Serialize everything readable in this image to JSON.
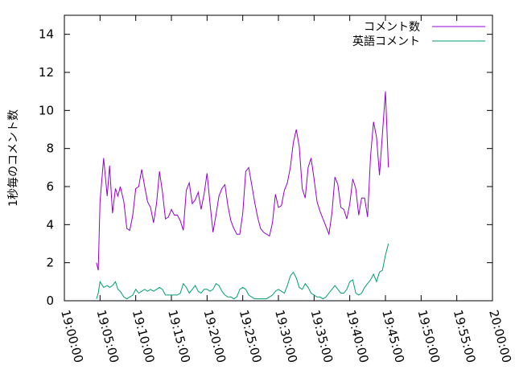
{
  "chart_data": {
    "type": "line",
    "ylabel": "1秒毎のコメント数",
    "xlabel": "",
    "ylim": [
      0,
      15
    ],
    "xlim": [
      "19:00:00",
      "20:00:00"
    ],
    "x_ticks": [
      "19:00:00",
      "19:05:00",
      "19:10:00",
      "19:15:00",
      "19:20:00",
      "19:25:00",
      "19:30:00",
      "19:35:00",
      "19:40:00",
      "19:45:00",
      "19:50:00",
      "19:55:00",
      "20:00:00"
    ],
    "y_ticks": [
      0,
      2,
      4,
      6,
      8,
      10,
      12,
      14
    ],
    "grid": false,
    "legend_position": "top-right",
    "series": [
      {
        "name": "コメント数",
        "color": "#9400d3",
        "points": [
          [
            "19:04:30",
            2.0
          ],
          [
            "19:04:45",
            1.6
          ],
          [
            "19:05:00",
            5.2
          ],
          [
            "19:05:30",
            7.5
          ],
          [
            "19:06:00",
            5.5
          ],
          [
            "19:06:20",
            7.1
          ],
          [
            "19:06:45",
            4.6
          ],
          [
            "19:07:10",
            5.9
          ],
          [
            "19:07:30",
            5.5
          ],
          [
            "19:07:50",
            6.0
          ],
          [
            "19:08:20",
            5.2
          ],
          [
            "19:08:45",
            3.8
          ],
          [
            "19:09:10",
            3.7
          ],
          [
            "19:09:35",
            4.5
          ],
          [
            "19:10:00",
            5.9
          ],
          [
            "19:10:25",
            6.0
          ],
          [
            "19:10:50",
            6.9
          ],
          [
            "19:11:15",
            6.0
          ],
          [
            "19:11:40",
            5.2
          ],
          [
            "19:12:05",
            4.9
          ],
          [
            "19:12:30",
            4.1
          ],
          [
            "19:12:55",
            5.1
          ],
          [
            "19:13:20",
            6.8
          ],
          [
            "19:13:45",
            5.7
          ],
          [
            "19:14:10",
            4.3
          ],
          [
            "19:14:35",
            4.4
          ],
          [
            "19:15:00",
            4.8
          ],
          [
            "19:15:25",
            4.5
          ],
          [
            "19:15:50",
            4.5
          ],
          [
            "19:16:15",
            4.2
          ],
          [
            "19:16:40",
            3.7
          ],
          [
            "19:17:05",
            5.8
          ],
          [
            "19:17:30",
            6.2
          ],
          [
            "19:17:55",
            5.1
          ],
          [
            "19:18:20",
            5.3
          ],
          [
            "19:18:45",
            5.7
          ],
          [
            "19:19:10",
            4.8
          ],
          [
            "19:19:35",
            5.6
          ],
          [
            "19:20:00",
            6.7
          ],
          [
            "19:20:25",
            5.1
          ],
          [
            "19:20:50",
            3.6
          ],
          [
            "19:21:15",
            4.5
          ],
          [
            "19:21:40",
            5.5
          ],
          [
            "19:22:05",
            5.9
          ],
          [
            "19:22:30",
            6.1
          ],
          [
            "19:22:55",
            5.0
          ],
          [
            "19:23:20",
            4.2
          ],
          [
            "19:23:45",
            3.8
          ],
          [
            "19:24:10",
            3.5
          ],
          [
            "19:24:35",
            3.5
          ],
          [
            "19:25:00",
            4.6
          ],
          [
            "19:25:25",
            6.8
          ],
          [
            "19:25:50",
            7.0
          ],
          [
            "19:26:15",
            6.1
          ],
          [
            "19:26:40",
            5.2
          ],
          [
            "19:27:05",
            4.4
          ],
          [
            "19:27:30",
            3.8
          ],
          [
            "19:27:55",
            3.6
          ],
          [
            "19:28:20",
            3.5
          ],
          [
            "19:28:45",
            3.4
          ],
          [
            "19:29:10",
            4.1
          ],
          [
            "19:29:35",
            5.6
          ],
          [
            "19:30:00",
            4.9
          ],
          [
            "19:30:25",
            5.0
          ],
          [
            "19:30:50",
            5.8
          ],
          [
            "19:31:15",
            6.2
          ],
          [
            "19:31:40",
            7.0
          ],
          [
            "19:32:05",
            8.3
          ],
          [
            "19:32:30",
            9.0
          ],
          [
            "19:32:55",
            8.1
          ],
          [
            "19:33:20",
            5.9
          ],
          [
            "19:33:45",
            5.4
          ],
          [
            "19:34:10",
            7.0
          ],
          [
            "19:34:35",
            7.5
          ],
          [
            "19:35:00",
            6.4
          ],
          [
            "19:35:25",
            5.2
          ],
          [
            "19:35:50",
            4.7
          ],
          [
            "19:36:15",
            4.3
          ],
          [
            "19:36:40",
            3.9
          ],
          [
            "19:37:05",
            3.5
          ],
          [
            "19:37:30",
            4.6
          ],
          [
            "19:37:55",
            6.5
          ],
          [
            "19:38:20",
            6.1
          ],
          [
            "19:38:45",
            4.9
          ],
          [
            "19:39:10",
            4.8
          ],
          [
            "19:39:35",
            4.3
          ],
          [
            "19:40:00",
            5.1
          ],
          [
            "19:40:25",
            6.4
          ],
          [
            "19:40:50",
            5.9
          ],
          [
            "19:41:15",
            4.5
          ],
          [
            "19:41:40",
            5.4
          ],
          [
            "19:42:05",
            5.4
          ],
          [
            "19:42:30",
            4.4
          ],
          [
            "19:42:55",
            7.6
          ],
          [
            "19:43:20",
            9.4
          ],
          [
            "19:43:45",
            8.6
          ],
          [
            "19:44:10",
            6.6
          ],
          [
            "19:44:35",
            8.8
          ],
          [
            "19:45:00",
            11.0
          ],
          [
            "19:45:25",
            7.0
          ]
        ]
      },
      {
        "name": "英語コメント",
        "color": "#009e73",
        "points": [
          [
            "19:04:30",
            0.1
          ],
          [
            "19:04:45",
            0.4
          ],
          [
            "19:05:00",
            1.0
          ],
          [
            "19:05:30",
            0.7
          ],
          [
            "19:06:00",
            0.8
          ],
          [
            "19:06:20",
            0.7
          ],
          [
            "19:06:45",
            0.8
          ],
          [
            "19:07:10",
            1.0
          ],
          [
            "19:07:30",
            0.6
          ],
          [
            "19:07:50",
            0.5
          ],
          [
            "19:08:20",
            0.2
          ],
          [
            "19:08:45",
            0.1
          ],
          [
            "19:09:10",
            0.2
          ],
          [
            "19:09:35",
            0.3
          ],
          [
            "19:10:00",
            0.6
          ],
          [
            "19:10:25",
            0.4
          ],
          [
            "19:10:50",
            0.5
          ],
          [
            "19:11:15",
            0.6
          ],
          [
            "19:11:40",
            0.5
          ],
          [
            "19:12:05",
            0.6
          ],
          [
            "19:12:30",
            0.5
          ],
          [
            "19:12:55",
            0.6
          ],
          [
            "19:13:20",
            0.7
          ],
          [
            "19:13:45",
            0.6
          ],
          [
            "19:14:10",
            0.3
          ],
          [
            "19:14:35",
            0.3
          ],
          [
            "19:15:00",
            0.3
          ],
          [
            "19:15:25",
            0.3
          ],
          [
            "19:15:50",
            0.3
          ],
          [
            "19:16:15",
            0.4
          ],
          [
            "19:16:40",
            0.9
          ],
          [
            "19:17:05",
            0.7
          ],
          [
            "19:17:30",
            0.4
          ],
          [
            "19:17:55",
            0.6
          ],
          [
            "19:18:20",
            0.8
          ],
          [
            "19:18:45",
            0.5
          ],
          [
            "19:19:10",
            0.4
          ],
          [
            "19:19:35",
            0.6
          ],
          [
            "19:20:00",
            0.6
          ],
          [
            "19:20:25",
            0.5
          ],
          [
            "19:20:50",
            0.6
          ],
          [
            "19:21:15",
            0.9
          ],
          [
            "19:21:40",
            0.8
          ],
          [
            "19:22:05",
            0.5
          ],
          [
            "19:22:30",
            0.3
          ],
          [
            "19:22:55",
            0.2
          ],
          [
            "19:23:20",
            0.2
          ],
          [
            "19:23:45",
            0.1
          ],
          [
            "19:24:10",
            0.2
          ],
          [
            "19:24:35",
            0.6
          ],
          [
            "19:25:00",
            0.7
          ],
          [
            "19:25:25",
            0.6
          ],
          [
            "19:25:50",
            0.3
          ],
          [
            "19:26:15",
            0.2
          ],
          [
            "19:26:40",
            0.1
          ],
          [
            "19:27:05",
            0.1
          ],
          [
            "19:27:30",
            0.1
          ],
          [
            "19:27:55",
            0.1
          ],
          [
            "19:28:20",
            0.1
          ],
          [
            "19:28:45",
            0.2
          ],
          [
            "19:29:10",
            0.3
          ],
          [
            "19:29:35",
            0.5
          ],
          [
            "19:30:00",
            0.6
          ],
          [
            "19:30:25",
            0.5
          ],
          [
            "19:30:50",
            0.4
          ],
          [
            "19:31:15",
            0.8
          ],
          [
            "19:31:40",
            1.3
          ],
          [
            "19:32:05",
            1.5
          ],
          [
            "19:32:30",
            1.2
          ],
          [
            "19:32:55",
            0.7
          ],
          [
            "19:33:20",
            0.6
          ],
          [
            "19:33:45",
            0.9
          ],
          [
            "19:34:10",
            0.7
          ],
          [
            "19:34:35",
            0.4
          ],
          [
            "19:35:00",
            0.3
          ],
          [
            "19:35:25",
            0.2
          ],
          [
            "19:35:50",
            0.2
          ],
          [
            "19:36:15",
            0.1
          ],
          [
            "19:36:40",
            0.2
          ],
          [
            "19:37:05",
            0.4
          ],
          [
            "19:37:30",
            0.6
          ],
          [
            "19:37:55",
            0.8
          ],
          [
            "19:38:20",
            0.6
          ],
          [
            "19:38:45",
            0.4
          ],
          [
            "19:39:10",
            0.4
          ],
          [
            "19:39:35",
            0.6
          ],
          [
            "19:40:00",
            1.0
          ],
          [
            "19:40:25",
            1.1
          ],
          [
            "19:40:50",
            0.4
          ],
          [
            "19:41:15",
            0.3
          ],
          [
            "19:41:40",
            0.4
          ],
          [
            "19:42:05",
            0.7
          ],
          [
            "19:42:30",
            0.9
          ],
          [
            "19:42:55",
            1.1
          ],
          [
            "19:43:20",
            1.4
          ],
          [
            "19:43:45",
            1.0
          ],
          [
            "19:44:10",
            1.5
          ],
          [
            "19:44:35",
            1.6
          ],
          [
            "19:45:00",
            2.4
          ],
          [
            "19:45:25",
            3.0
          ]
        ]
      }
    ]
  }
}
